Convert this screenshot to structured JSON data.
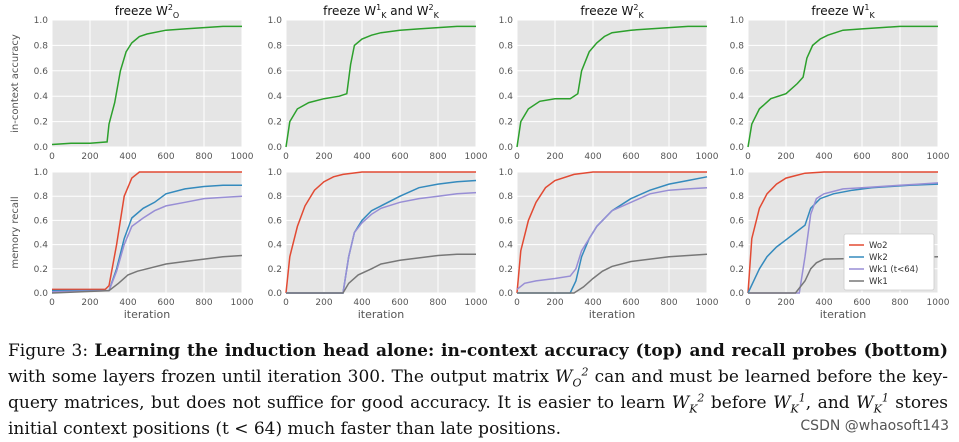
{
  "figure": {
    "panel_titles": [
      {
        "base": "freeze W",
        "sub": "O",
        "sup": "2",
        "suffix": ""
      },
      {
        "base": "freeze W",
        "sub": "K",
        "sup": "1",
        "suffix": " and W",
        "sub2": "K",
        "sup2": "2"
      },
      {
        "base": "freeze W",
        "sub": "K",
        "sup": "2",
        "suffix": ""
      },
      {
        "base": "freeze W",
        "sub": "K",
        "sup": "1",
        "suffix": ""
      }
    ],
    "row_ylabels": [
      "in-context accuracy",
      "memory recall"
    ],
    "xlabel": "iteration",
    "x_ticks": [
      "0",
      "200",
      "400",
      "600",
      "800",
      "1000"
    ],
    "y_ticks": [
      "0.0",
      "0.2",
      "0.4",
      "0.6",
      "0.8",
      "1.0"
    ],
    "legend": [
      {
        "name": "Wo2",
        "color": "#e24a33"
      },
      {
        "name": "Wk2",
        "color": "#348abd"
      },
      {
        "name": "Wk1 (t<64)",
        "color": "#988ed5"
      },
      {
        "name": "Wk1",
        "color": "#777777"
      }
    ]
  },
  "chart_data": [
    {
      "type": "line",
      "title": "freeze W_O^2",
      "ylabel": "in-context accuracy",
      "xlabel": "",
      "xlim": [
        0,
        1000
      ],
      "ylim": [
        0,
        1
      ],
      "series": [
        {
          "name": "accuracy",
          "color": "#2ca02c",
          "x": [
            0,
            100,
            200,
            290,
            300,
            330,
            360,
            390,
            420,
            460,
            500,
            600,
            700,
            800,
            900,
            1000
          ],
          "y": [
            0.02,
            0.03,
            0.03,
            0.04,
            0.18,
            0.35,
            0.6,
            0.75,
            0.82,
            0.87,
            0.89,
            0.92,
            0.93,
            0.94,
            0.95,
            0.95
          ]
        }
      ]
    },
    {
      "type": "line",
      "title": "freeze W_K^1 and W_K^2",
      "xlim": [
        0,
        1000
      ],
      "ylim": [
        0,
        1
      ],
      "series": [
        {
          "name": "accuracy",
          "color": "#2ca02c",
          "x": [
            0,
            20,
            60,
            120,
            200,
            280,
            320,
            340,
            360,
            400,
            450,
            500,
            600,
            700,
            800,
            900,
            1000
          ],
          "y": [
            0.0,
            0.2,
            0.3,
            0.35,
            0.38,
            0.4,
            0.42,
            0.65,
            0.8,
            0.85,
            0.88,
            0.9,
            0.92,
            0.93,
            0.94,
            0.95,
            0.95
          ]
        }
      ]
    },
    {
      "type": "line",
      "title": "freeze W_K^2",
      "xlim": [
        0,
        1000
      ],
      "ylim": [
        0,
        1
      ],
      "series": [
        {
          "name": "accuracy",
          "color": "#2ca02c",
          "x": [
            0,
            20,
            60,
            120,
            200,
            280,
            320,
            340,
            380,
            420,
            460,
            500,
            600,
            700,
            800,
            900,
            1000
          ],
          "y": [
            0.0,
            0.2,
            0.3,
            0.36,
            0.38,
            0.38,
            0.42,
            0.6,
            0.75,
            0.82,
            0.87,
            0.9,
            0.92,
            0.93,
            0.94,
            0.95,
            0.95
          ]
        }
      ]
    },
    {
      "type": "line",
      "title": "freeze W_K^1",
      "xlim": [
        0,
        1000
      ],
      "ylim": [
        0,
        1
      ],
      "series": [
        {
          "name": "accuracy",
          "color": "#2ca02c",
          "x": [
            0,
            20,
            60,
            120,
            200,
            260,
            290,
            310,
            340,
            380,
            420,
            460,
            500,
            600,
            700,
            800,
            900,
            1000
          ],
          "y": [
            0.0,
            0.18,
            0.3,
            0.38,
            0.42,
            0.5,
            0.55,
            0.7,
            0.8,
            0.85,
            0.88,
            0.9,
            0.92,
            0.93,
            0.94,
            0.95,
            0.95,
            0.95
          ]
        }
      ]
    },
    {
      "type": "line",
      "ylabel": "memory recall",
      "xlabel": "iteration",
      "xlim": [
        0,
        1000
      ],
      "ylim": [
        0,
        1
      ],
      "series": [
        {
          "name": "Wo2",
          "color": "#e24a33",
          "x": [
            0,
            280,
            300,
            340,
            380,
            420,
            460,
            500,
            1000
          ],
          "y": [
            0.03,
            0.03,
            0.06,
            0.4,
            0.8,
            0.95,
            1.0,
            1.0,
            1.0
          ]
        },
        {
          "name": "Wk2",
          "color": "#348abd",
          "x": [
            0,
            300,
            340,
            380,
            420,
            480,
            540,
            600,
            700,
            800,
            900,
            1000
          ],
          "y": [
            0.02,
            0.02,
            0.2,
            0.45,
            0.62,
            0.7,
            0.75,
            0.82,
            0.86,
            0.88,
            0.89,
            0.89
          ]
        },
        {
          "name": "Wk1 (t<64)",
          "color": "#988ed5",
          "x": [
            0,
            300,
            340,
            380,
            420,
            480,
            540,
            600,
            700,
            800,
            900,
            1000
          ],
          "y": [
            0.01,
            0.02,
            0.18,
            0.4,
            0.55,
            0.62,
            0.68,
            0.72,
            0.75,
            0.78,
            0.79,
            0.8
          ]
        },
        {
          "name": "Wk1",
          "color": "#777777",
          "x": [
            0,
            300,
            350,
            400,
            450,
            500,
            600,
            700,
            800,
            900,
            1000
          ],
          "y": [
            0.0,
            0.02,
            0.08,
            0.15,
            0.18,
            0.2,
            0.24,
            0.26,
            0.28,
            0.3,
            0.31
          ]
        }
      ]
    },
    {
      "type": "line",
      "xlabel": "iteration",
      "xlim": [
        0,
        1000
      ],
      "ylim": [
        0,
        1
      ],
      "series": [
        {
          "name": "Wo2",
          "color": "#e24a33",
          "x": [
            0,
            20,
            60,
            100,
            150,
            200,
            250,
            300,
            400,
            500,
            1000
          ],
          "y": [
            0.0,
            0.3,
            0.55,
            0.72,
            0.85,
            0.92,
            0.96,
            0.98,
            1.0,
            1.0,
            1.0
          ]
        },
        {
          "name": "Wk2",
          "color": "#348abd",
          "x": [
            0,
            300,
            330,
            360,
            400,
            450,
            500,
            600,
            700,
            800,
            900,
            1000
          ],
          "y": [
            0.0,
            0.0,
            0.3,
            0.5,
            0.6,
            0.68,
            0.72,
            0.8,
            0.87,
            0.9,
            0.92,
            0.93
          ]
        },
        {
          "name": "Wk1 (t<64)",
          "color": "#988ed5",
          "x": [
            0,
            300,
            330,
            360,
            400,
            450,
            500,
            600,
            700,
            800,
            900,
            1000
          ],
          "y": [
            0.0,
            0.0,
            0.3,
            0.5,
            0.58,
            0.65,
            0.7,
            0.75,
            0.78,
            0.8,
            0.82,
            0.83
          ]
        },
        {
          "name": "Wk1",
          "color": "#777777",
          "x": [
            0,
            300,
            330,
            380,
            450,
            500,
            600,
            700,
            800,
            900,
            1000
          ],
          "y": [
            0.0,
            0.0,
            0.08,
            0.15,
            0.2,
            0.24,
            0.27,
            0.29,
            0.31,
            0.32,
            0.32
          ]
        }
      ]
    },
    {
      "type": "line",
      "xlabel": "iteration",
      "xlim": [
        0,
        1000
      ],
      "ylim": [
        0,
        1
      ],
      "series": [
        {
          "name": "Wo2",
          "color": "#e24a33",
          "x": [
            0,
            20,
            60,
            100,
            150,
            200,
            300,
            400,
            500,
            1000
          ],
          "y": [
            0.0,
            0.35,
            0.6,
            0.75,
            0.87,
            0.93,
            0.98,
            1.0,
            1.0,
            1.0
          ]
        },
        {
          "name": "Wk2",
          "color": "#348abd",
          "x": [
            0,
            280,
            310,
            340,
            380,
            420,
            500,
            600,
            700,
            800,
            900,
            1000
          ],
          "y": [
            0.0,
            0.0,
            0.1,
            0.3,
            0.45,
            0.55,
            0.68,
            0.78,
            0.85,
            0.9,
            0.93,
            0.96
          ]
        },
        {
          "name": "Wk1 (t<64)",
          "color": "#988ed5",
          "x": [
            0,
            40,
            100,
            200,
            280,
            310,
            340,
            380,
            420,
            500,
            600,
            700,
            800,
            900,
            1000
          ],
          "y": [
            0.03,
            0.08,
            0.1,
            0.12,
            0.14,
            0.2,
            0.35,
            0.45,
            0.55,
            0.68,
            0.75,
            0.82,
            0.85,
            0.86,
            0.87
          ]
        },
        {
          "name": "Wk1",
          "color": "#777777",
          "x": [
            0,
            300,
            350,
            400,
            450,
            500,
            600,
            700,
            800,
            900,
            1000
          ],
          "y": [
            0.0,
            0.0,
            0.05,
            0.12,
            0.18,
            0.22,
            0.26,
            0.28,
            0.3,
            0.31,
            0.32
          ]
        }
      ]
    },
    {
      "type": "line",
      "xlabel": "iteration",
      "xlim": [
        0,
        1000
      ],
      "ylim": [
        0,
        1
      ],
      "series": [
        {
          "name": "Wo2",
          "color": "#e24a33",
          "x": [
            0,
            20,
            60,
            100,
            150,
            200,
            250,
            300,
            400,
            1000
          ],
          "y": [
            0.0,
            0.45,
            0.7,
            0.82,
            0.9,
            0.95,
            0.97,
            0.99,
            1.0,
            1.0
          ]
        },
        {
          "name": "Wk2",
          "color": "#348abd",
          "x": [
            0,
            30,
            60,
            100,
            150,
            200,
            250,
            300,
            330,
            380,
            450,
            550,
            650,
            750,
            850,
            1000
          ],
          "y": [
            0.0,
            0.1,
            0.2,
            0.3,
            0.38,
            0.44,
            0.5,
            0.56,
            0.7,
            0.78,
            0.82,
            0.85,
            0.87,
            0.88,
            0.89,
            0.9
          ]
        },
        {
          "name": "Wk1 (t<64)",
          "color": "#988ed5",
          "x": [
            0,
            270,
            300,
            330,
            360,
            400,
            450,
            500,
            600,
            700,
            800,
            900,
            1000
          ],
          "y": [
            0.0,
            0.0,
            0.3,
            0.65,
            0.78,
            0.82,
            0.84,
            0.86,
            0.87,
            0.88,
            0.89,
            0.9,
            0.91
          ]
        },
        {
          "name": "Wk1",
          "color": "#777777",
          "x": [
            0,
            250,
            300,
            330,
            360,
            400,
            1000
          ],
          "y": [
            0.0,
            0.0,
            0.1,
            0.2,
            0.25,
            0.28,
            0.3
          ]
        }
      ]
    }
  ],
  "caption": {
    "fig_label": "Figure 3:",
    "bold_part": "Learning the induction head alone: in-context accuracy (top) and recall probes (bottom)",
    "text1": " with some layers frozen until iteration 300. The output matrix ",
    "m1_base": "W",
    "m1_sub": "O",
    "m1_sup": "2",
    "text2": " can and must be learned before the key-query matrices, but does not suffice for good accuracy. It is easier to learn ",
    "m2_base": "W",
    "m2_sub": "K",
    "m2_sup": "2",
    "text3": " before ",
    "m3_base": "W",
    "m3_sub": "K",
    "m3_sup": "1",
    "text4": ", and ",
    "m4_base": "W",
    "m4_sub": "K",
    "m4_sup": "1",
    "text5": " stores initial context positions (t < 64) much faster than late positions."
  },
  "watermark": "CSDN @whaosoft143"
}
